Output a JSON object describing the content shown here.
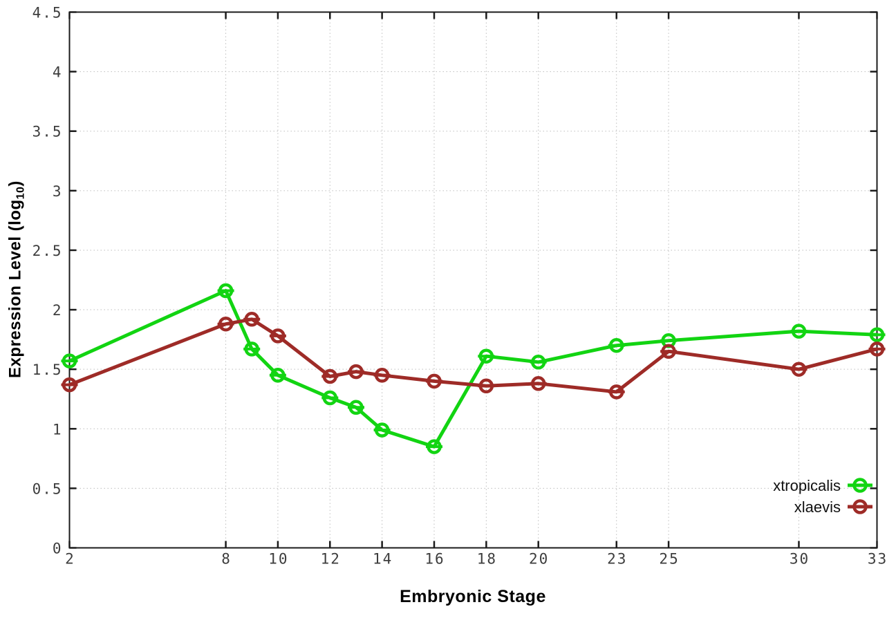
{
  "chart_data": {
    "type": "line",
    "title": "",
    "xlabel": "Embryonic Stage",
    "ylabel": "Expression Level (log10)",
    "ylabel_parts": {
      "base": "Expression Level (log",
      "sub": "10",
      "close": ")"
    },
    "x": [
      2,
      8,
      9,
      10,
      12,
      13,
      14,
      16,
      18,
      20,
      23,
      25,
      30,
      33
    ],
    "series": [
      {
        "name": "xtropicalis",
        "color": "#12d412",
        "values": [
          1.57,
          2.16,
          1.67,
          1.45,
          1.26,
          1.18,
          0.99,
          0.85,
          1.61,
          1.56,
          1.7,
          1.74,
          1.82,
          1.79
        ]
      },
      {
        "name": "xlaevis",
        "color": "#9e2b27",
        "values": [
          1.37,
          1.88,
          1.92,
          1.78,
          1.44,
          1.48,
          1.45,
          1.4,
          1.36,
          1.38,
          1.31,
          1.65,
          1.5,
          1.67
        ]
      }
    ],
    "xlim": [
      2,
      33
    ],
    "ylim": [
      0,
      4.5
    ],
    "x_ticks": [
      2,
      8,
      10,
      12,
      14,
      16,
      18,
      20,
      23,
      25,
      30,
      33
    ],
    "y_ticks": [
      0,
      0.5,
      1,
      1.5,
      2,
      2.5,
      3,
      3.5,
      4,
      4.5
    ],
    "grid": true,
    "grid_style": "dotted",
    "marker": "open-circle-with-errorbar-cap",
    "legend_position": "inside-bottom-right"
  },
  "colors": {
    "background": "#ffffff",
    "border": "#1b1b1b",
    "grid": "#bdbdbd",
    "tick_label": "#3d3d3d",
    "series_green": "#12d412",
    "series_dark_red": "#9e2b27"
  }
}
